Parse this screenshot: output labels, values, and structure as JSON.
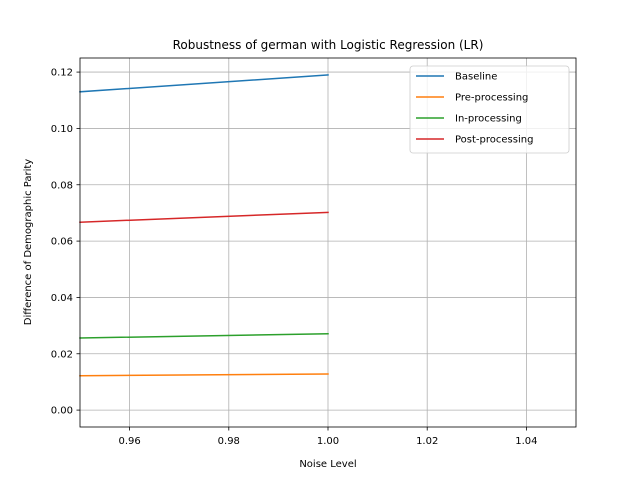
{
  "chart_data": {
    "type": "line",
    "title": "Robustness of german with Logistic Regression (LR)",
    "xlabel": "Noise Level",
    "ylabel": "Difference of Demographic Parity",
    "xlim": [
      0.95,
      1.05
    ],
    "ylim": [
      -0.006,
      0.125
    ],
    "x_ticks": [
      "0.96",
      "0.98",
      "1.00",
      "1.02",
      "1.04"
    ],
    "y_ticks": [
      "0.00",
      "0.02",
      "0.04",
      "0.06",
      "0.08",
      "0.10",
      "0.12"
    ],
    "grid": true,
    "legend_position": "top-right",
    "series": [
      {
        "name": "Baseline",
        "color": "#1f77b4",
        "points": [
          [
            0.95,
            0.113
          ],
          [
            1.0,
            0.119
          ]
        ]
      },
      {
        "name": "Pre-processing",
        "color": "#ff7f0e",
        "points": [
          [
            0.95,
            0.0122
          ],
          [
            1.0,
            0.0128
          ]
        ]
      },
      {
        "name": "In-processing",
        "color": "#2ca02c",
        "points": [
          [
            0.95,
            0.0256
          ],
          [
            1.0,
            0.0271
          ]
        ]
      },
      {
        "name": "Post-processing",
        "color": "#d62728",
        "points": [
          [
            0.95,
            0.0667
          ],
          [
            1.0,
            0.0702
          ]
        ]
      }
    ]
  }
}
